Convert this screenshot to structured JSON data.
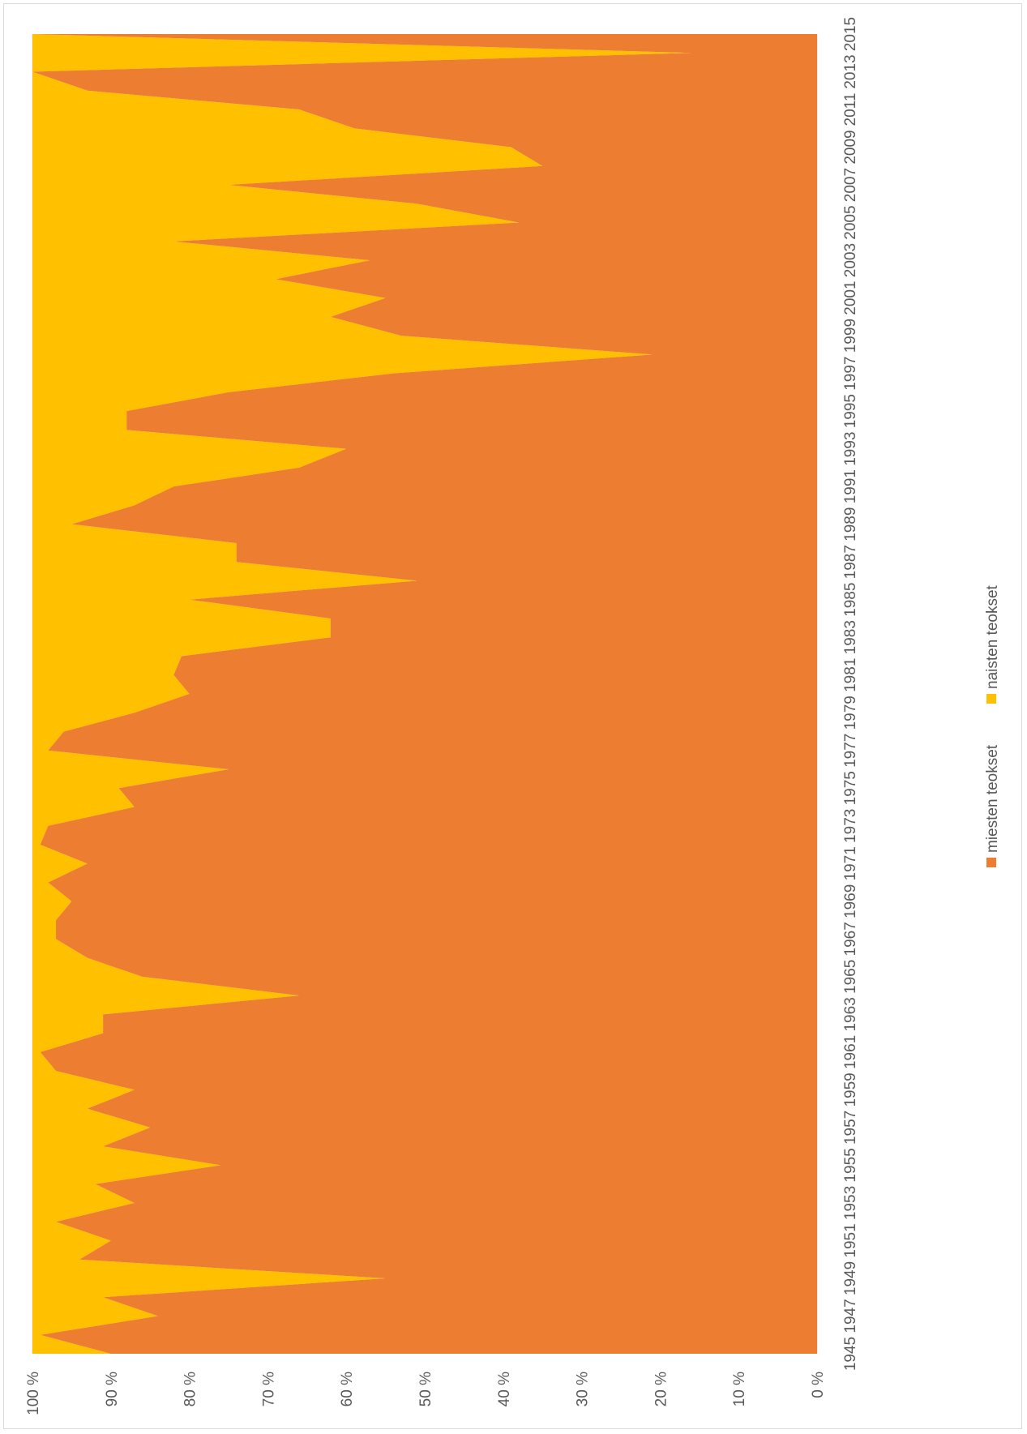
{
  "chart_data": {
    "type": "area",
    "stacked_percent": true,
    "orientation": "rotated-90",
    "categories": [
      1945,
      1946,
      1947,
      1948,
      1949,
      1950,
      1951,
      1952,
      1953,
      1954,
      1955,
      1956,
      1957,
      1958,
      1959,
      1960,
      1961,
      1962,
      1963,
      1964,
      1965,
      1966,
      1967,
      1968,
      1969,
      1970,
      1971,
      1972,
      1973,
      1974,
      1975,
      1976,
      1977,
      1978,
      1979,
      1980,
      1981,
      1982,
      1983,
      1984,
      1985,
      1986,
      1987,
      1988,
      1989,
      1990,
      1991,
      1992,
      1993,
      1994,
      1995,
      1996,
      1997,
      1998,
      1999,
      2000,
      2001,
      2002,
      2003,
      2004,
      2005,
      2006,
      2007,
      2008,
      2009,
      2010,
      2011,
      2012,
      2013,
      2014,
      2015
    ],
    "x_tick_labels": [
      "1945",
      "1947",
      "1949",
      "1951",
      "1953",
      "1955",
      "1957",
      "1959",
      "1961",
      "1963",
      "1965",
      "1967",
      "1969",
      "1971",
      "1973",
      "1975",
      "1977",
      "1979",
      "1981",
      "1983",
      "1985",
      "1987",
      "1989",
      "1991",
      "1993",
      "1995",
      "1997",
      "1999",
      "2001",
      "2003",
      "2005",
      "2007",
      "2009",
      "2011",
      "2013",
      "2015"
    ],
    "y_ticks": [
      "0 %",
      "10 %",
      "20 %",
      "30 %",
      "40 %",
      "50 %",
      "60 %",
      "70 %",
      "80 %",
      "90 %",
      "100 %"
    ],
    "ylim": [
      0,
      100
    ],
    "series": [
      {
        "name": "miesten teokset",
        "color": "#ED7D31",
        "values": [
          90,
          99,
          84,
          91,
          55,
          94,
          90,
          97,
          87,
          92,
          76,
          91,
          85,
          93,
          87,
          97,
          99,
          91,
          91,
          66,
          86,
          93,
          97,
          97,
          95,
          98,
          93,
          99,
          98,
          87,
          89,
          75,
          98,
          96,
          87,
          80,
          82,
          81,
          62,
          62,
          80,
          51,
          74,
          74,
          95,
          87,
          82,
          66,
          60,
          88,
          88,
          75,
          54,
          21,
          53,
          62,
          55,
          69,
          57,
          82,
          38,
          51,
          75,
          35,
          39,
          59,
          66,
          93,
          100,
          16,
          100
        ]
      },
      {
        "name": "naisten teokset",
        "color": "#FFC000",
        "values": [
          10,
          1,
          16,
          9,
          45,
          6,
          10,
          3,
          13,
          8,
          24,
          9,
          15,
          7,
          13,
          3,
          1,
          9,
          9,
          34,
          14,
          7,
          3,
          3,
          5,
          2,
          7,
          1,
          2,
          13,
          11,
          25,
          2,
          4,
          13,
          20,
          18,
          19,
          38,
          38,
          20,
          49,
          26,
          26,
          5,
          13,
          18,
          34,
          40,
          12,
          12,
          25,
          46,
          79,
          47,
          38,
          45,
          31,
          43,
          18,
          62,
          49,
          25,
          65,
          61,
          41,
          34,
          7,
          0,
          84,
          0
        ]
      }
    ],
    "grid": true,
    "legend_position": "bottom"
  }
}
